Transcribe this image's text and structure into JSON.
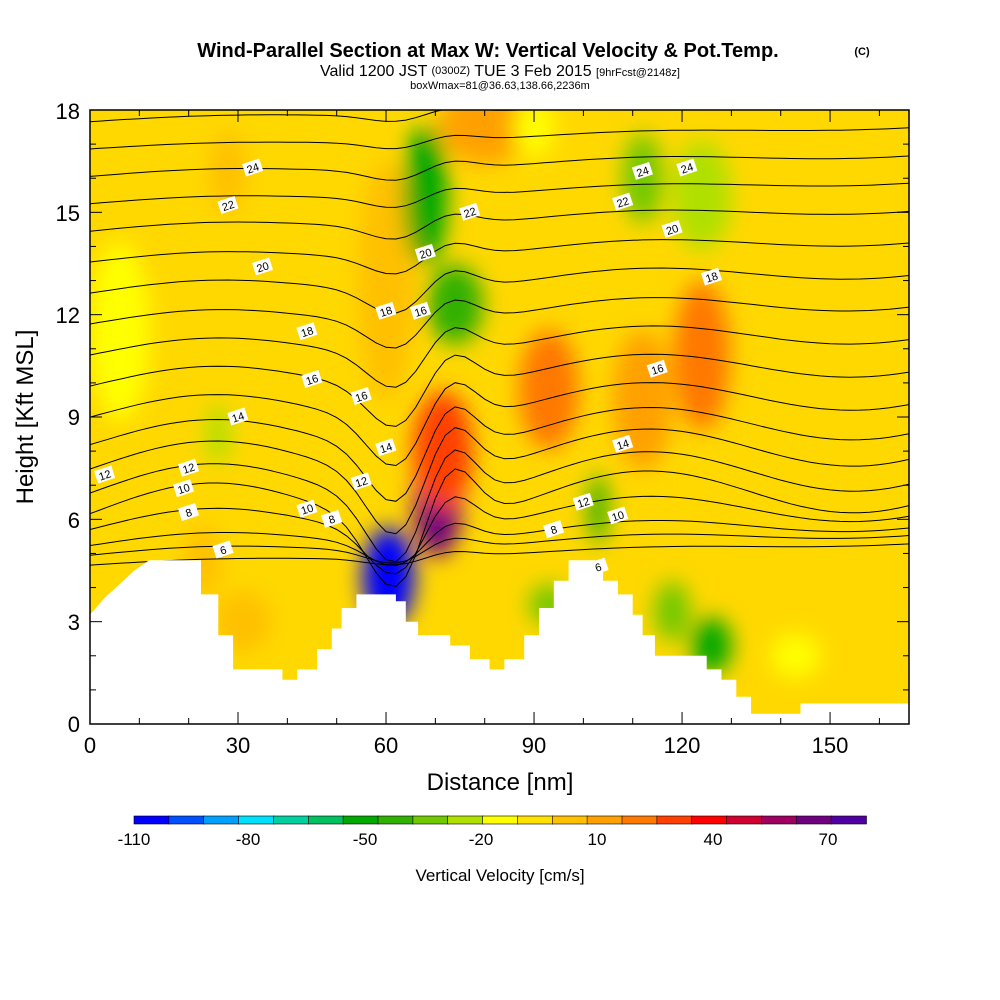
{
  "chart_data": {
    "type": "heatmap",
    "title": "Wind-Parallel Section at Max W: Vertical Velocity & Pot.Temp.",
    "title_mark": "(C)",
    "subtitle": {
      "valid": "Valid 1200 JST",
      "utc": "(0300Z)",
      "date": "TUE 3 Feb 2015",
      "fcst": "[9hrFcst@2148z]"
    },
    "info": "boxWmax=81@36.63,138.66,2236m",
    "xlabel": "Distance [nm]",
    "ylabel": "Height [Kft MSL]",
    "xlim": [
      0,
      166
    ],
    "ylim": [
      0,
      18
    ],
    "xticks": [
      "0",
      "30",
      "60",
      "90",
      "120",
      "150"
    ],
    "yticks": [
      "0",
      "3",
      "6",
      "9",
      "12",
      "15",
      "18"
    ],
    "colorbar": {
      "label": "Vertical Velocity [cm/s]",
      "tick_labels": [
        "-110",
        "-80",
        "-50",
        "-20",
        "10",
        "40",
        "70"
      ],
      "colors": [
        "#0000ff",
        "#0050ff",
        "#00a0ff",
        "#00e0ff",
        "#00d0a0",
        "#00c060",
        "#00a800",
        "#30b000",
        "#70c800",
        "#b0e000",
        "#ffff00",
        "#ffe000",
        "#ffc000",
        "#ffa000",
        "#ff7800",
        "#ff4000",
        "#ff0000",
        "#d00030",
        "#a00060",
        "#700080",
        "#5000a0"
      ]
    },
    "features": [
      {
        "x": 60.5,
        "y": 4.3,
        "w": -110
      },
      {
        "x": 70.5,
        "y": 6.5,
        "w": 81
      },
      {
        "x": 71.5,
        "y": 8.0,
        "w": 40
      },
      {
        "x": 60,
        "y": 13.0,
        "w": 10
      },
      {
        "x": 80,
        "y": 17.6,
        "w": 25
      },
      {
        "x": 68,
        "y": 15.5,
        "w": -45
      },
      {
        "x": 74,
        "y": 12.3,
        "w": -35
      },
      {
        "x": 93,
        "y": 9.8,
        "w": 30
      },
      {
        "x": 124,
        "y": 10.8,
        "w": 35
      },
      {
        "x": 112,
        "y": 9.5,
        "w": 20
      },
      {
        "x": 28,
        "y": 16.2,
        "w": 15
      },
      {
        "x": 23,
        "y": 4.8,
        "w": 15
      },
      {
        "x": 31,
        "y": 3.0,
        "w": 10
      },
      {
        "x": 103,
        "y": 6.3,
        "w": -35
      },
      {
        "x": 112,
        "y": 16.0,
        "w": -30
      },
      {
        "x": 124,
        "y": 15.5,
        "w": -15
      },
      {
        "x": 26,
        "y": 8.5,
        "w": -15
      },
      {
        "x": 93,
        "y": 3.5,
        "w": -30
      },
      {
        "x": 126,
        "y": 2.3,
        "w": -45
      },
      {
        "x": 118,
        "y": 3.3,
        "w": -25
      },
      {
        "x": 143,
        "y": 2.0,
        "w": -10
      },
      {
        "x": 6,
        "y": 11.5,
        "w": -8
      },
      {
        "x": 90,
        "y": 17.5,
        "w": -10
      }
    ],
    "contour_series": {
      "name": "Pot.Temp.",
      "values": [
        6,
        8,
        10,
        12,
        14,
        16,
        18,
        20,
        22,
        24
      ]
    },
    "contour_labels": [
      "24",
      "22",
      "20",
      "18",
      "16",
      "14",
      "12",
      "10",
      "8",
      "24",
      "22",
      "20",
      "18",
      "16",
      "14",
      "12",
      "10",
      "8",
      "6",
      "24",
      "22",
      "20",
      "18",
      "16",
      "14",
      "12",
      "10",
      "8",
      "6",
      "12",
      "16"
    ],
    "terrain": [
      [
        0,
        3.2
      ],
      [
        3,
        3.7
      ],
      [
        6,
        4.1
      ],
      [
        9,
        4.5
      ],
      [
        12,
        4.8
      ],
      [
        22.5,
        4.8
      ],
      [
        22.5,
        3.8
      ],
      [
        26,
        3.8
      ],
      [
        26,
        2.6
      ],
      [
        29,
        2.6
      ],
      [
        29,
        1.6
      ],
      [
        39,
        1.6
      ],
      [
        39,
        1.3
      ],
      [
        42,
        1.3
      ],
      [
        42,
        1.6
      ],
      [
        46,
        1.6
      ],
      [
        46,
        2.2
      ],
      [
        49,
        2.2
      ],
      [
        49,
        2.8
      ],
      [
        51,
        2.8
      ],
      [
        51,
        3.4
      ],
      [
        54,
        3.4
      ],
      [
        54,
        3.8
      ],
      [
        62,
        3.8
      ],
      [
        62,
        3.6
      ],
      [
        64,
        3.6
      ],
      [
        64,
        3.0
      ],
      [
        66.5,
        3.0
      ],
      [
        66.5,
        2.6
      ],
      [
        73,
        2.6
      ],
      [
        73,
        2.3
      ],
      [
        77,
        2.3
      ],
      [
        77,
        1.9
      ],
      [
        81,
        1.9
      ],
      [
        81,
        1.6
      ],
      [
        84,
        1.6
      ],
      [
        84,
        1.9
      ],
      [
        88,
        1.9
      ],
      [
        88,
        2.6
      ],
      [
        91,
        2.6
      ],
      [
        91,
        3.4
      ],
      [
        94,
        3.4
      ],
      [
        94,
        4.2
      ],
      [
        97,
        4.2
      ],
      [
        97,
        4.8
      ],
      [
        104,
        4.8
      ],
      [
        104,
        4.2
      ],
      [
        107,
        4.2
      ],
      [
        107,
        3.8
      ],
      [
        110,
        3.8
      ],
      [
        110,
        3.2
      ],
      [
        112,
        3.2
      ],
      [
        112,
        2.6
      ],
      [
        114.5,
        2.6
      ],
      [
        114.5,
        2.0
      ],
      [
        125,
        2.0
      ],
      [
        125,
        1.6
      ],
      [
        128,
        1.6
      ],
      [
        128,
        1.3
      ],
      [
        131,
        1.3
      ],
      [
        131,
        0.8
      ],
      [
        134,
        0.8
      ],
      [
        134,
        0.3
      ],
      [
        144,
        0.3
      ],
      [
        144,
        0.6
      ],
      [
        166,
        0.6
      ]
    ]
  }
}
